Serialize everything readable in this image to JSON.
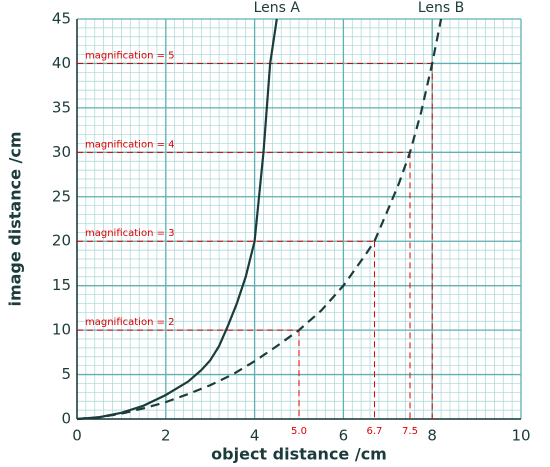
{
  "chart_data": {
    "type": "line",
    "xlabel": "object distance /cm",
    "ylabel": "image distance /cm",
    "xlim": [
      0,
      10
    ],
    "ylim": [
      0,
      45
    ],
    "xticks": [
      0,
      2,
      4,
      6,
      8,
      10
    ],
    "yticks": [
      0,
      5,
      10,
      15,
      20,
      25,
      30,
      35,
      40,
      45
    ],
    "grid": true,
    "minor_grid": {
      "x": 0.2,
      "y": 1
    },
    "series": [
      {
        "name": "Lens A",
        "color": "#1c3b3b",
        "dash": false,
        "x": [
          0,
          0.5,
          1,
          1.5,
          2,
          2.5,
          2.8,
          3,
          3.2,
          3.4,
          3.6,
          3.8,
          4,
          4.2,
          4.35,
          4.5
        ],
        "values": [
          0,
          0.2,
          0.7,
          1.5,
          2.7,
          4.2,
          5.5,
          6.6,
          8.2,
          10.5,
          13,
          16,
          20,
          30,
          40,
          45
        ]
      },
      {
        "name": "Lens B",
        "color": "#1c3b3b",
        "dash": true,
        "x": [
          0,
          0.5,
          1,
          1.5,
          2,
          2.5,
          3,
          3.5,
          4,
          4.5,
          5,
          5.5,
          6,
          6.5,
          6.7,
          7,
          7.25,
          7.5,
          7.75,
          8,
          8.2
        ],
        "values": [
          0,
          0.2,
          0.6,
          1.2,
          1.9,
          2.8,
          3.8,
          5,
          6.5,
          8.2,
          10,
          12.2,
          15,
          18.5,
          20,
          23.5,
          26.5,
          30,
          34.5,
          40,
          45
        ]
      }
    ],
    "annotation_color": "#e00000",
    "annotations": [
      {
        "text": "magnification = 2",
        "x": 5,
        "y": 10,
        "x_label": "5.0"
      },
      {
        "text": "magnification = 3",
        "x": 6.7,
        "y": 20,
        "x_label": "6.7"
      },
      {
        "text": "magnification = 4",
        "x": 7.5,
        "y": 30,
        "x_label": "7.5"
      },
      {
        "text": "magnification = 5",
        "x": 8,
        "y": 40
      }
    ]
  }
}
